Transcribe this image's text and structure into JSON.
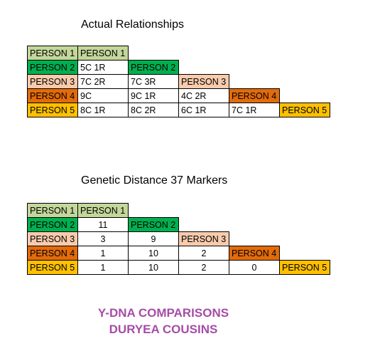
{
  "section1": {
    "title": "Actual Relationships",
    "rows": [
      {
        "label": "PERSON 1",
        "values": [
          "PERSON 1"
        ]
      },
      {
        "label": "PERSON 2",
        "values": [
          "5C 1R",
          "PERSON 2"
        ]
      },
      {
        "label": "PERSON 3",
        "values": [
          "7C 2R",
          "7C 3R",
          "PERSON 3"
        ]
      },
      {
        "label": "PERSON 4",
        "values": [
          "9C",
          "9C 1R",
          "4C 2R",
          "PERSON 4"
        ]
      },
      {
        "label": "PERSON 5",
        "values": [
          "8C 1R",
          "8C 2R",
          "6C 1R",
          "7C 1R",
          "PERSON 5"
        ]
      }
    ]
  },
  "section2": {
    "title": "Genetic Distance 37 Markers",
    "rows": [
      {
        "label": "PERSON 1",
        "values": [
          "PERSON 1"
        ]
      },
      {
        "label": "PERSON 2",
        "values": [
          "11",
          "PERSON 2"
        ]
      },
      {
        "label": "PERSON 3",
        "values": [
          "3",
          "9",
          "PERSON 3"
        ]
      },
      {
        "label": "PERSON 4",
        "values": [
          "1",
          "10",
          "2",
          "PERSON 4"
        ]
      },
      {
        "label": "PERSON 5",
        "values": [
          "1",
          "10",
          "2",
          "0",
          "PERSON 5"
        ]
      }
    ]
  },
  "colors": {
    "person1": "#c4d79b",
    "person2": "#00b050",
    "person3": "#f8cbad",
    "person4": "#e26b0a",
    "person5": "#ffc000",
    "footer_text": "#a64ca6"
  },
  "footer": {
    "line1": "Y-DNA COMPARISONS",
    "line2": "DURYEA COUSINS"
  }
}
